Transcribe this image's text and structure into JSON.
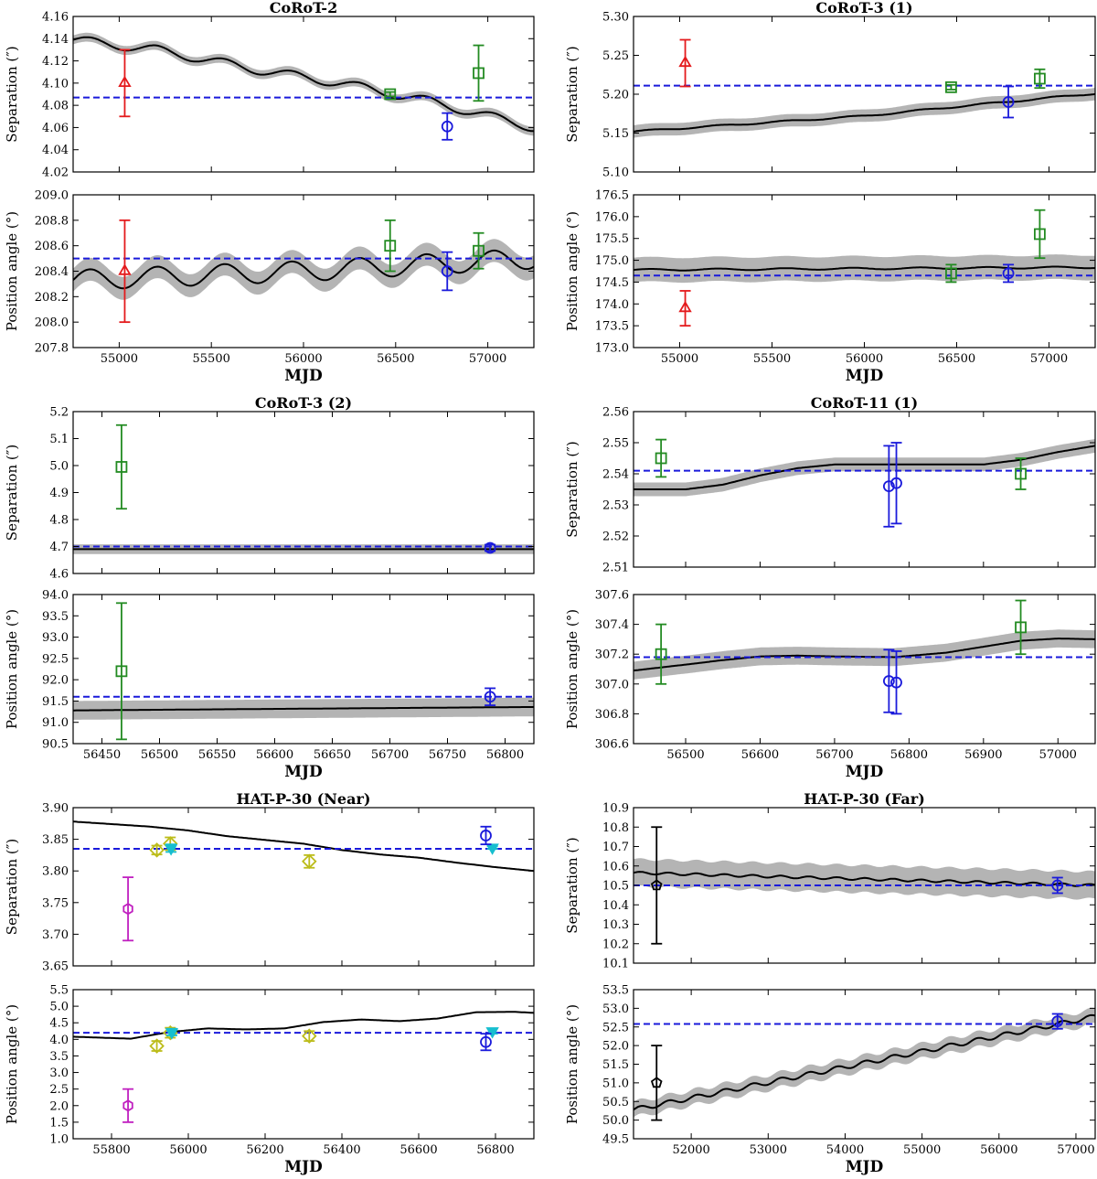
{
  "chart_data": [
    {
      "type": "scatter",
      "title": "CoRoT-2",
      "xlabel": "",
      "xlim": [
        54750,
        57250
      ],
      "xticks": [
        55000,
        55500,
        56000,
        56500,
        57000
      ],
      "show_xticklabels": false,
      "ylabel": "Separation (″)",
      "ylim": [
        4.02,
        4.16
      ],
      "yticks": [
        "4.02",
        "4.04",
        "4.06",
        "4.08",
        "4.10",
        "4.12",
        "4.14",
        "4.16"
      ],
      "hline": 4.087,
      "model": {
        "band": 0.004,
        "base": [
          [
            54750,
            4.139
          ],
          [
            55200,
            4.13
          ],
          [
            55750,
            4.112
          ],
          [
            56200,
            4.1
          ],
          [
            56700,
            4.083
          ],
          [
            57250,
            4.06
          ]
        ],
        "amp": 0.004,
        "period": 365
      },
      "points": [
        {
          "x": 55030,
          "y": 4.1,
          "err": 0.03,
          "marker": "triangle",
          "color": "#e41a1c"
        },
        {
          "x": 56470,
          "y": 4.09,
          "err": 0.002,
          "marker": "square",
          "color": "#238b22"
        },
        {
          "x": 56950,
          "y": 4.109,
          "err": 0.025,
          "marker": "square",
          "color": "#238b22"
        },
        {
          "x": 56780,
          "y": 4.061,
          "err": 0.012,
          "marker": "circle",
          "color": "#1a1adb"
        }
      ]
    },
    {
      "type": "scatter",
      "title": "",
      "xlabel": "MJD",
      "xlim": [
        54750,
        57250
      ],
      "xticks": [
        55000,
        55500,
        56000,
        56500,
        57000
      ],
      "show_xticklabels": true,
      "ylabel": "Position angle (°)",
      "ylim": [
        207.8,
        209.0
      ],
      "yticks": [
        "207.8",
        "208.0",
        "208.2",
        "208.4",
        "208.6",
        "208.8",
        "209.0"
      ],
      "hline": 208.5,
      "model": {
        "band": 0.09,
        "base": [
          [
            54750,
            208.33
          ],
          [
            56000,
            208.4
          ],
          [
            57250,
            208.5
          ]
        ],
        "amp": 0.08,
        "period": 365
      },
      "points": [
        {
          "x": 55030,
          "y": 208.4,
          "err": 0.4,
          "marker": "triangle",
          "color": "#e41a1c"
        },
        {
          "x": 56470,
          "y": 208.6,
          "err": 0.2,
          "marker": "square",
          "color": "#238b22"
        },
        {
          "x": 56950,
          "y": 208.56,
          "err": 0.14,
          "marker": "square",
          "color": "#238b22"
        },
        {
          "x": 56780,
          "y": 208.4,
          "err": 0.15,
          "marker": "circle",
          "color": "#1a1adb"
        }
      ]
    },
    {
      "type": "scatter",
      "title": "CoRoT-3 (1)",
      "xlabel": "",
      "xlim": [
        54750,
        57250
      ],
      "xticks": [
        55000,
        55500,
        56000,
        56500,
        57000
      ],
      "show_xticklabels": false,
      "ylabel": "Separation (″)",
      "ylim": [
        5.1,
        5.3
      ],
      "yticks": [
        "5.10",
        "5.15",
        "5.20",
        "5.25",
        "5.30"
      ],
      "hline": 5.211,
      "model": {
        "band": 0.008,
        "base": [
          [
            54750,
            5.152
          ],
          [
            55500,
            5.164
          ],
          [
            56000,
            5.172
          ],
          [
            56500,
            5.184
          ],
          [
            57250,
            5.201
          ]
        ],
        "amp": 0.001,
        "period": 365
      },
      "points": [
        {
          "x": 55030,
          "y": 5.24,
          "err": 0.03,
          "marker": "triangle",
          "color": "#e41a1c"
        },
        {
          "x": 56470,
          "y": 5.209,
          "err": 0.003,
          "marker": "square",
          "color": "#238b22"
        },
        {
          "x": 56950,
          "y": 5.22,
          "err": 0.012,
          "marker": "square",
          "color": "#238b22"
        },
        {
          "x": 56780,
          "y": 5.19,
          "err": 0.02,
          "marker": "circle",
          "color": "#1a1adb"
        }
      ]
    },
    {
      "type": "scatter",
      "title": "",
      "xlabel": "MJD",
      "xlim": [
        54750,
        57250
      ],
      "xticks": [
        55000,
        55500,
        56000,
        56500,
        57000
      ],
      "show_xticklabels": true,
      "ylabel": "Position angle (°)",
      "ylim": [
        173.0,
        176.5
      ],
      "yticks": [
        "173.0",
        "173.5",
        "174.0",
        "174.5",
        "175.0",
        "175.5",
        "176.0",
        "176.5"
      ],
      "hline": 174.65,
      "model": {
        "band": 0.28,
        "base": [
          [
            54750,
            174.78
          ],
          [
            57250,
            174.84
          ]
        ],
        "amp": 0.02,
        "period": 365
      },
      "points": [
        {
          "x": 55030,
          "y": 173.9,
          "err": 0.4,
          "marker": "triangle",
          "color": "#e41a1c"
        },
        {
          "x": 56470,
          "y": 174.7,
          "err": 0.2,
          "marker": "square",
          "color": "#238b22"
        },
        {
          "x": 56950,
          "y": 175.6,
          "err": 0.55,
          "marker": "square",
          "color": "#238b22"
        },
        {
          "x": 56780,
          "y": 174.7,
          "err": 0.2,
          "marker": "circle",
          "color": "#1a1adb"
        }
      ]
    },
    {
      "type": "scatter",
      "title": "CoRoT-3 (2)",
      "xlabel": "",
      "xlim": [
        56425,
        56825
      ],
      "xticks": [
        56450,
        56500,
        56550,
        56600,
        56650,
        56700,
        56750,
        56800
      ],
      "show_xticklabels": false,
      "ylabel": "Separation (″)",
      "ylim": [
        4.6,
        5.2
      ],
      "yticks": [
        "4.6",
        "4.7",
        "4.8",
        "4.9",
        "5.0",
        "5.1",
        "5.2"
      ],
      "hline": 4.7,
      "model": {
        "band": 0.018,
        "base": [
          [
            56425,
            4.69
          ],
          [
            56825,
            4.69
          ]
        ],
        "amp": 0,
        "period": 365
      },
      "points": [
        {
          "x": 56467,
          "y": 4.995,
          "err": 0.155,
          "marker": "square",
          "color": "#238b22"
        },
        {
          "x": 56787,
          "y": 4.695,
          "err": 0.012,
          "marker": "circle",
          "color": "#1a1adb"
        }
      ]
    },
    {
      "type": "scatter",
      "title": "",
      "xlabel": "MJD",
      "xlim": [
        56425,
        56825
      ],
      "xticks": [
        56450,
        56500,
        56550,
        56600,
        56650,
        56700,
        56750,
        56800
      ],
      "show_xticklabels": true,
      "ylabel": "Position angle (°)",
      "ylim": [
        90.5,
        94.0
      ],
      "yticks": [
        "90.5",
        "91.0",
        "91.5",
        "92.0",
        "92.5",
        "93.0",
        "93.5",
        "94.0"
      ],
      "hline": 91.6,
      "model": {
        "band": 0.22,
        "base": [
          [
            56425,
            91.28
          ],
          [
            56825,
            91.36
          ]
        ],
        "amp": 0,
        "period": 365
      },
      "points": [
        {
          "x": 56467,
          "y": 92.2,
          "err": 1.6,
          "marker": "square",
          "color": "#238b22"
        },
        {
          "x": 56787,
          "y": 91.6,
          "err": 0.2,
          "marker": "circle",
          "color": "#1a1adb"
        }
      ]
    },
    {
      "type": "scatter",
      "title": "CoRoT-11 (1)",
      "xlabel": "",
      "xlim": [
        56430,
        57050
      ],
      "xticks": [
        56500,
        56600,
        56700,
        56800,
        56900,
        57000
      ],
      "show_xticklabels": false,
      "ylabel": "Separation (″)",
      "ylim": [
        2.51,
        2.56
      ],
      "yticks": [
        "2.51",
        "2.52",
        "2.53",
        "2.54",
        "2.55",
        "2.56"
      ],
      "hline": 2.541,
      "model": {
        "band": 0.0022,
        "base": [
          [
            56430,
            2.535
          ],
          [
            56500,
            2.535
          ],
          [
            56550,
            2.5365
          ],
          [
            56600,
            2.5395
          ],
          [
            56650,
            2.5418
          ],
          [
            56700,
            2.543
          ],
          [
            56900,
            2.543
          ],
          [
            56950,
            2.5445
          ],
          [
            57000,
            2.547
          ],
          [
            57050,
            2.549
          ]
        ],
        "amp": 0,
        "period": 365
      },
      "points": [
        {
          "x": 56467,
          "y": 2.545,
          "err": 0.006,
          "marker": "square",
          "color": "#238b22"
        },
        {
          "x": 56950,
          "y": 2.54,
          "err": 0.005,
          "marker": "square",
          "color": "#238b22"
        },
        {
          "x": 56773,
          "y": 2.536,
          "err": 0.013,
          "marker": "circle",
          "color": "#1a1adb"
        },
        {
          "x": 56783,
          "y": 2.537,
          "err": 0.013,
          "marker": "circle",
          "color": "#1a1adb"
        }
      ]
    },
    {
      "type": "scatter",
      "title": "",
      "xlabel": "MJD",
      "xlim": [
        56430,
        57050
      ],
      "xticks": [
        56500,
        56600,
        56700,
        56800,
        56900,
        57000
      ],
      "show_xticklabels": true,
      "ylabel": "Position angle (°)",
      "ylim": [
        306.6,
        307.6
      ],
      "yticks": [
        "306.6",
        "306.8",
        "307.0",
        "307.2",
        "307.4",
        "307.6"
      ],
      "hline": 307.18,
      "model": {
        "band": 0.06,
        "base": [
          [
            56430,
            307.09
          ],
          [
            56500,
            307.13
          ],
          [
            56550,
            307.16
          ],
          [
            56600,
            307.185
          ],
          [
            56650,
            307.19
          ],
          [
            56700,
            307.185
          ],
          [
            56780,
            307.18
          ],
          [
            56850,
            307.21
          ],
          [
            56900,
            307.25
          ],
          [
            56950,
            307.29
          ],
          [
            57000,
            307.305
          ],
          [
            57050,
            307.3
          ]
        ],
        "amp": 0,
        "period": 365
      },
      "points": [
        {
          "x": 56467,
          "y": 307.2,
          "err": 0.2,
          "marker": "square",
          "color": "#238b22"
        },
        {
          "x": 56950,
          "y": 307.38,
          "err": 0.18,
          "marker": "square",
          "color": "#238b22"
        },
        {
          "x": 56773,
          "y": 307.02,
          "err": 0.21,
          "marker": "circle",
          "color": "#1a1adb"
        },
        {
          "x": 56783,
          "y": 307.01,
          "err": 0.21,
          "marker": "circle",
          "color": "#1a1adb"
        }
      ]
    },
    {
      "type": "scatter",
      "title": "HAT-P-30 (Near)",
      "xlabel": "",
      "xlim": [
        55700,
        56900
      ],
      "xticks": [
        55800,
        56000,
        56200,
        56400,
        56600,
        56800
      ],
      "show_xticklabels": false,
      "ylabel": "Separation (″)",
      "ylim": [
        3.65,
        3.9
      ],
      "yticks": [
        "3.65",
        "3.70",
        "3.75",
        "3.80",
        "3.85",
        "3.90"
      ],
      "hline": 3.835,
      "model": {
        "band": 0,
        "base": [
          [
            55700,
            3.878
          ],
          [
            55900,
            3.87
          ],
          [
            56000,
            3.864
          ],
          [
            56100,
            3.855
          ],
          [
            56200,
            3.849
          ],
          [
            56300,
            3.843
          ],
          [
            56400,
            3.833
          ],
          [
            56500,
            3.826
          ],
          [
            56600,
            3.821
          ],
          [
            56700,
            3.813
          ],
          [
            56800,
            3.806
          ],
          [
            56900,
            3.8
          ]
        ],
        "amp": 0,
        "period": 365
      },
      "points": [
        {
          "x": 55843,
          "y": 3.74,
          "err": 0.05,
          "marker": "hexagon",
          "color": "#c020c0"
        },
        {
          "x": 55918,
          "y": 3.833,
          "err": 0.007,
          "marker": "diamond",
          "color": "#bcbc1a"
        },
        {
          "x": 55953,
          "y": 3.843,
          "err": 0.01,
          "marker": "diamond",
          "color": "#bcbc1a"
        },
        {
          "x": 56315,
          "y": 3.815,
          "err": 0.01,
          "marker": "diamond",
          "color": "#bcbc1a"
        },
        {
          "x": 55955,
          "y": 3.836,
          "err": 0.006,
          "marker": "triangle-down",
          "color": "#17becf"
        },
        {
          "x": 56792,
          "y": 3.837,
          "err": 0.002,
          "marker": "triangle-down",
          "color": "#17becf"
        },
        {
          "x": 56775,
          "y": 3.856,
          "err": 0.014,
          "marker": "circle",
          "color": "#1a1adb"
        }
      ]
    },
    {
      "type": "scatter",
      "title": "",
      "xlabel": "MJD",
      "xlim": [
        55700,
        56900
      ],
      "xticks": [
        55800,
        56000,
        56200,
        56400,
        56600,
        56800
      ],
      "show_xticklabels": true,
      "ylabel": "Position angle (°)",
      "ylim": [
        1.0,
        5.5
      ],
      "yticks": [
        "1.0",
        "1.5",
        "2.0",
        "2.5",
        "3.0",
        "3.5",
        "4.0",
        "4.5",
        "5.0",
        "5.5"
      ],
      "hline": 4.2,
      "model": {
        "band": 0,
        "base": [
          [
            55700,
            4.08
          ],
          [
            55850,
            4.02
          ],
          [
            55950,
            4.22
          ],
          [
            56050,
            4.33
          ],
          [
            56150,
            4.3
          ],
          [
            56250,
            4.33
          ],
          [
            56350,
            4.52
          ],
          [
            56450,
            4.6
          ],
          [
            56550,
            4.55
          ],
          [
            56650,
            4.63
          ],
          [
            56750,
            4.82
          ],
          [
            56850,
            4.83
          ],
          [
            56900,
            4.8
          ]
        ],
        "amp": 0,
        "period": 365
      },
      "points": [
        {
          "x": 55843,
          "y": 2.0,
          "err": 0.5,
          "marker": "hexagon",
          "color": "#c020c0"
        },
        {
          "x": 55918,
          "y": 3.8,
          "err": 0.15,
          "marker": "diamond",
          "color": "#bcbc1a"
        },
        {
          "x": 55953,
          "y": 4.2,
          "err": 0.15,
          "marker": "diamond",
          "color": "#bcbc1a"
        },
        {
          "x": 56315,
          "y": 4.1,
          "err": 0.15,
          "marker": "diamond",
          "color": "#bcbc1a"
        },
        {
          "x": 55957,
          "y": 4.22,
          "err": 0.1,
          "marker": "triangle-down",
          "color": "#17becf"
        },
        {
          "x": 56792,
          "y": 4.25,
          "err": 0.08,
          "marker": "triangle-down",
          "color": "#17becf"
        },
        {
          "x": 56775,
          "y": 3.92,
          "err": 0.25,
          "marker": "circle",
          "color": "#1a1adb"
        }
      ]
    },
    {
      "type": "scatter",
      "title": "HAT-P-30 (Far)",
      "xlabel": "",
      "xlim": [
        51250,
        57250
      ],
      "xticks": [
        52000,
        53000,
        54000,
        55000,
        56000,
        57000
      ],
      "show_xticklabels": false,
      "ylabel": "Separation (″)",
      "ylim": [
        10.1,
        10.9
      ],
      "yticks": [
        "10.1",
        "10.2",
        "10.3",
        "10.4",
        "10.5",
        "10.6",
        "10.7",
        "10.8",
        "10.9"
      ],
      "hline": 10.5,
      "model": {
        "band": 0.07,
        "base": [
          [
            51250,
            10.565
          ],
          [
            57250,
            10.5
          ]
        ],
        "amp": 0.006,
        "period": 365
      },
      "points": [
        {
          "x": 51550,
          "y": 10.5,
          "err": 0.3,
          "marker": "pentagon",
          "color": "#000000"
        },
        {
          "x": 56760,
          "y": 10.5,
          "err": 0.04,
          "marker": "circle",
          "color": "#1a1adb"
        }
      ]
    },
    {
      "type": "scatter",
      "title": "",
      "xlabel": "MJD",
      "xlim": [
        51250,
        57250
      ],
      "xticks": [
        52000,
        53000,
        54000,
        55000,
        56000,
        57000
      ],
      "show_xticklabels": true,
      "ylabel": "Position angle (°)",
      "ylim": [
        49.5,
        53.5
      ],
      "yticks": [
        "49.5",
        "50.0",
        "50.5",
        "51.0",
        "51.5",
        "52.0",
        "52.5",
        "53.0",
        "53.5"
      ],
      "hline": 52.58,
      "model": {
        "band": 0.2,
        "base": [
          [
            51250,
            50.28
          ],
          [
            57250,
            52.78
          ]
        ],
        "amp": 0.06,
        "period": 365
      },
      "points": [
        {
          "x": 51550,
          "y": 51.0,
          "err": 1.0,
          "marker": "pentagon",
          "color": "#000000"
        },
        {
          "x": 56760,
          "y": 52.65,
          "err": 0.2,
          "marker": "circle",
          "color": "#1a1adb"
        }
      ]
    }
  ]
}
